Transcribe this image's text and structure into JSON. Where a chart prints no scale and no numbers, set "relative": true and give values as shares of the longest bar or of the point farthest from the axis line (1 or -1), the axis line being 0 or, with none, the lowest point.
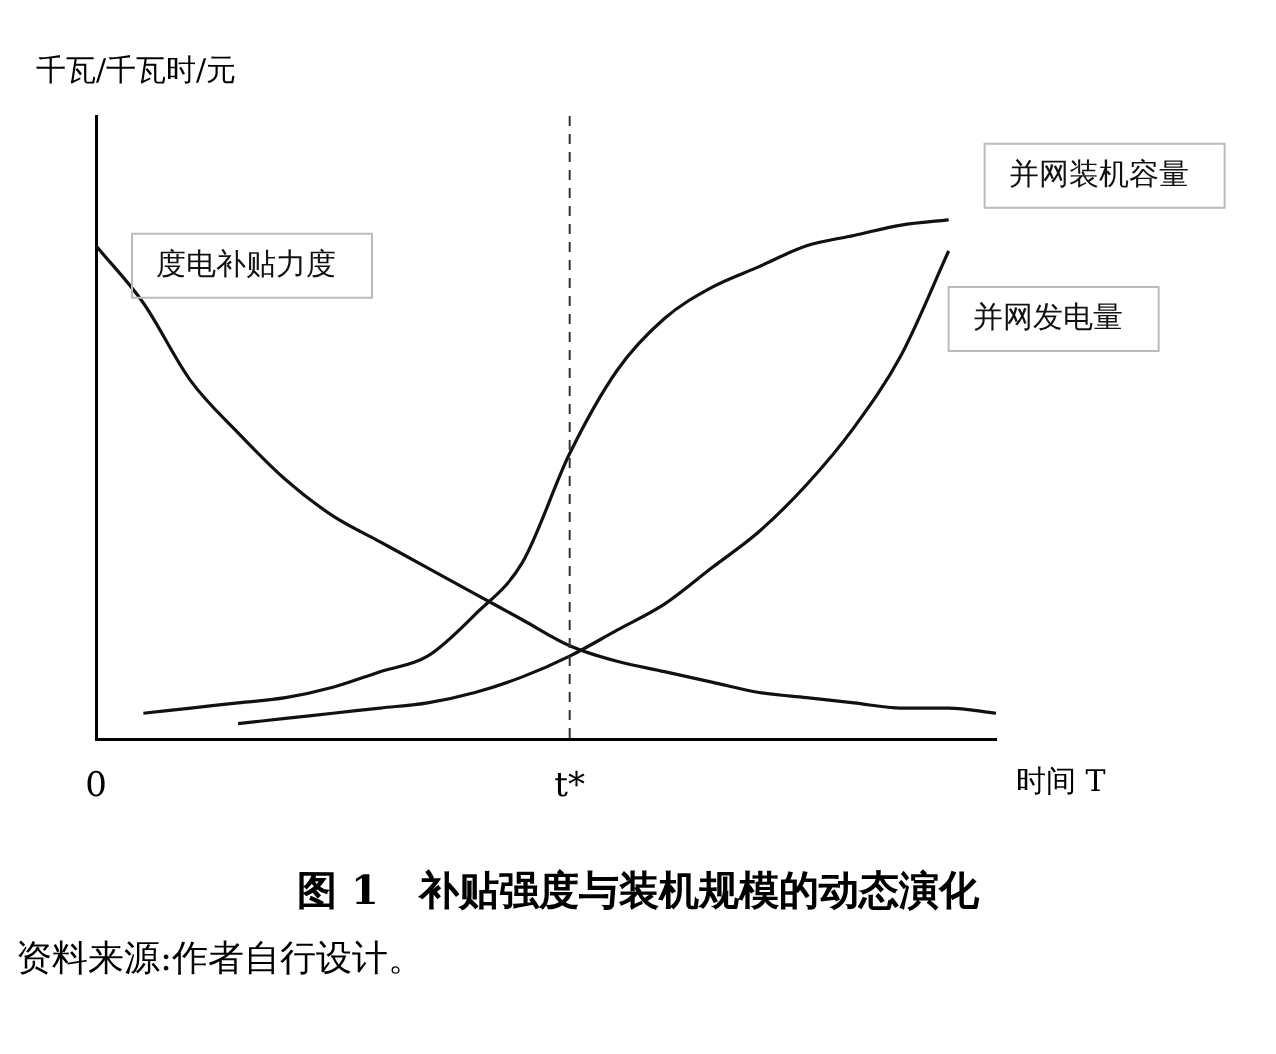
{
  "chart_data": {
    "type": "line",
    "relative": true,
    "title": "图 1　补贴强度与装机规模的动态演化",
    "ylabel": "千瓦/千瓦时/元",
    "xlabel": "时间 T",
    "annotations": [
      "资料来源:作者自行设计。"
    ],
    "categories": [
      "0",
      null,
      null,
      null,
      null,
      null,
      null,
      null,
      null,
      null,
      "t*",
      null,
      null,
      null,
      null,
      null,
      null,
      null,
      null,
      null
    ],
    "series": [
      {
        "name": "度电补贴力度",
        "color": "#111111",
        "values": [
          0.95,
          0.84,
          0.69,
          0.59,
          0.5,
          0.43,
          0.38,
          0.33,
          0.28,
          0.23,
          0.18,
          0.15,
          0.13,
          0.11,
          0.09,
          0.08,
          0.07,
          0.06,
          0.06,
          0.05
        ]
      },
      {
        "name": "并网装机容量",
        "color": "#111111",
        "values": [
          null,
          0.05,
          0.06,
          0.07,
          0.08,
          0.1,
          0.13,
          0.16,
          0.24,
          0.34,
          0.55,
          0.71,
          0.81,
          0.87,
          0.91,
          0.95,
          0.97,
          0.99,
          1.0,
          null
        ]
      },
      {
        "name": "并网发电量",
        "color": "#111111",
        "values": [
          null,
          null,
          null,
          0.03,
          0.04,
          0.05,
          0.06,
          0.07,
          0.09,
          0.12,
          0.16,
          0.21,
          0.26,
          0.33,
          0.4,
          0.49,
          0.6,
          0.74,
          0.94,
          null
        ]
      }
    ],
    "ref_lines": [
      {
        "axis": "x",
        "value": "t*",
        "line_style": "dashed",
        "color": "#333333"
      }
    ],
    "grid": false,
    "legend": false,
    "marker": "none",
    "line_style": "solid"
  }
}
